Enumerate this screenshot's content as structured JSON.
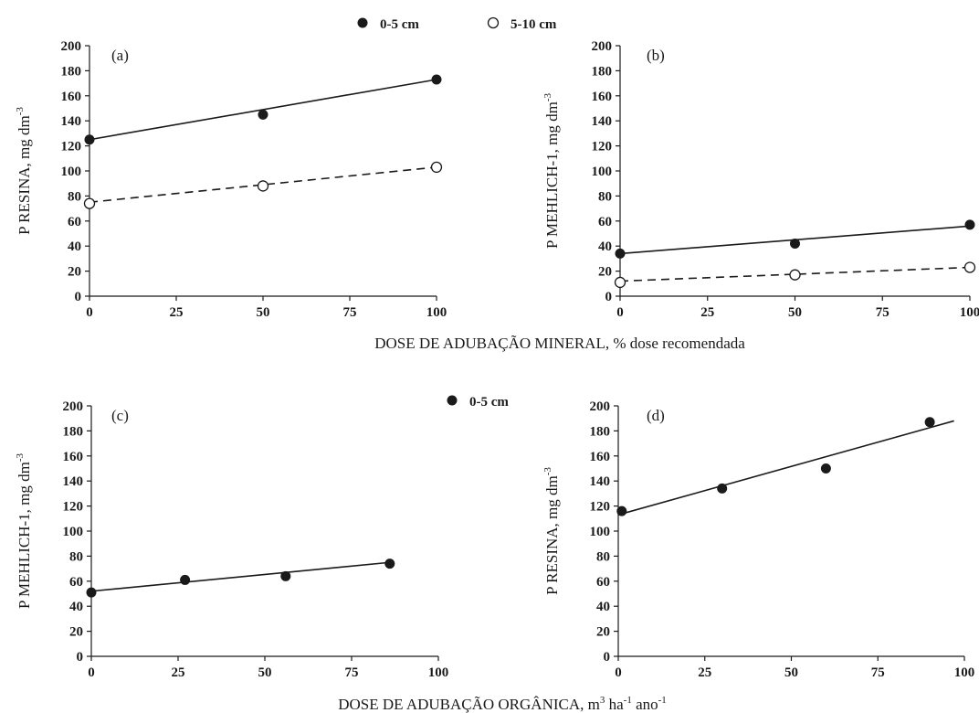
{
  "legend_top": [
    {
      "label": "0-5 cm",
      "marker": "filled"
    },
    {
      "label": "5-10 cm",
      "marker": "open"
    }
  ],
  "legend_mid": [
    {
      "label": "0-5 cm",
      "marker": "filled"
    }
  ],
  "xlabel_top": "DOSE DE ADUBAÇÃO MINERAL, % dose recomendada",
  "xlabel_bottom": {
    "prefix": "DOSE DE ADUBAÇÃO ORGÂNICA, m",
    "sup1": "3",
    "mid1": " ha",
    "sup2": "-1",
    "mid2": " ano",
    "sup3": "-1"
  },
  "chart_data": [
    {
      "type": "scatter",
      "panel": "(a)",
      "ylabel": "P RESINA, mg dm",
      "ylabel_sup": "-3",
      "xlim": [
        0,
        100
      ],
      "ylim": [
        0,
        200
      ],
      "xticks": [
        0,
        25,
        50,
        75,
        100
      ],
      "yticks": [
        0,
        20,
        40,
        60,
        80,
        100,
        120,
        140,
        160,
        180,
        200
      ],
      "series": [
        {
          "name": "0-5 cm",
          "marker": "filled",
          "line": "solid",
          "x": [
            0,
            50,
            100
          ],
          "y": [
            125,
            145,
            173
          ],
          "fit": [
            [
              0,
              125
            ],
            [
              100,
              173
            ]
          ]
        },
        {
          "name": "5-10 cm",
          "marker": "open",
          "line": "dashed",
          "x": [
            0,
            50,
            100
          ],
          "y": [
            74,
            88,
            103
          ],
          "fit": [
            [
              0,
              75
            ],
            [
              100,
              103
            ]
          ]
        }
      ]
    },
    {
      "type": "scatter",
      "panel": "(b)",
      "ylabel": "P MEHLICH-1, mg dm",
      "ylabel_sup": "-3",
      "xlim": [
        0,
        100
      ],
      "ylim": [
        0,
        200
      ],
      "xticks": [
        0,
        25,
        50,
        75,
        100
      ],
      "yticks": [
        0,
        20,
        40,
        60,
        80,
        100,
        120,
        140,
        160,
        180,
        200
      ],
      "series": [
        {
          "name": "0-5 cm",
          "marker": "filled",
          "line": "solid",
          "x": [
            0,
            50,
            100
          ],
          "y": [
            34,
            42,
            57
          ],
          "fit": [
            [
              0,
              34
            ],
            [
              100,
              56
            ]
          ]
        },
        {
          "name": "5-10 cm",
          "marker": "open",
          "line": "dashed",
          "x": [
            0,
            50,
            100
          ],
          "y": [
            11,
            17,
            23
          ],
          "fit": [
            [
              0,
              12
            ],
            [
              100,
              23
            ]
          ]
        }
      ]
    },
    {
      "type": "scatter",
      "panel": "(c)",
      "ylabel": "P MEHLICH-1, mg dm",
      "ylabel_sup": "-3",
      "xlim": [
        0,
        100
      ],
      "ylim": [
        0,
        200
      ],
      "xticks": [
        0,
        25,
        50,
        75,
        100
      ],
      "yticks": [
        0,
        20,
        40,
        60,
        80,
        100,
        120,
        140,
        160,
        180,
        200
      ],
      "series": [
        {
          "name": "0-5 cm",
          "marker": "filled",
          "line": "solid",
          "x": [
            0,
            27,
            56,
            86
          ],
          "y": [
            51,
            61,
            64,
            74
          ],
          "fit": [
            [
              0,
              52
            ],
            [
              86,
              75
            ]
          ]
        }
      ]
    },
    {
      "type": "scatter",
      "panel": "(d)",
      "ylabel": "P RESINA, mg dm",
      "ylabel_sup": "-3",
      "xlim": [
        0,
        100
      ],
      "ylim": [
        0,
        200
      ],
      "xticks": [
        0,
        25,
        50,
        75,
        100
      ],
      "yticks": [
        0,
        20,
        40,
        60,
        80,
        100,
        120,
        140,
        160,
        180,
        200
      ],
      "series": [
        {
          "name": "0-5 cm",
          "marker": "filled",
          "line": "solid",
          "x": [
            1,
            30,
            60,
            90
          ],
          "y": [
            116,
            134,
            150,
            187
          ],
          "fit": [
            [
              0,
              113
            ],
            [
              97,
              188
            ]
          ]
        }
      ]
    }
  ]
}
